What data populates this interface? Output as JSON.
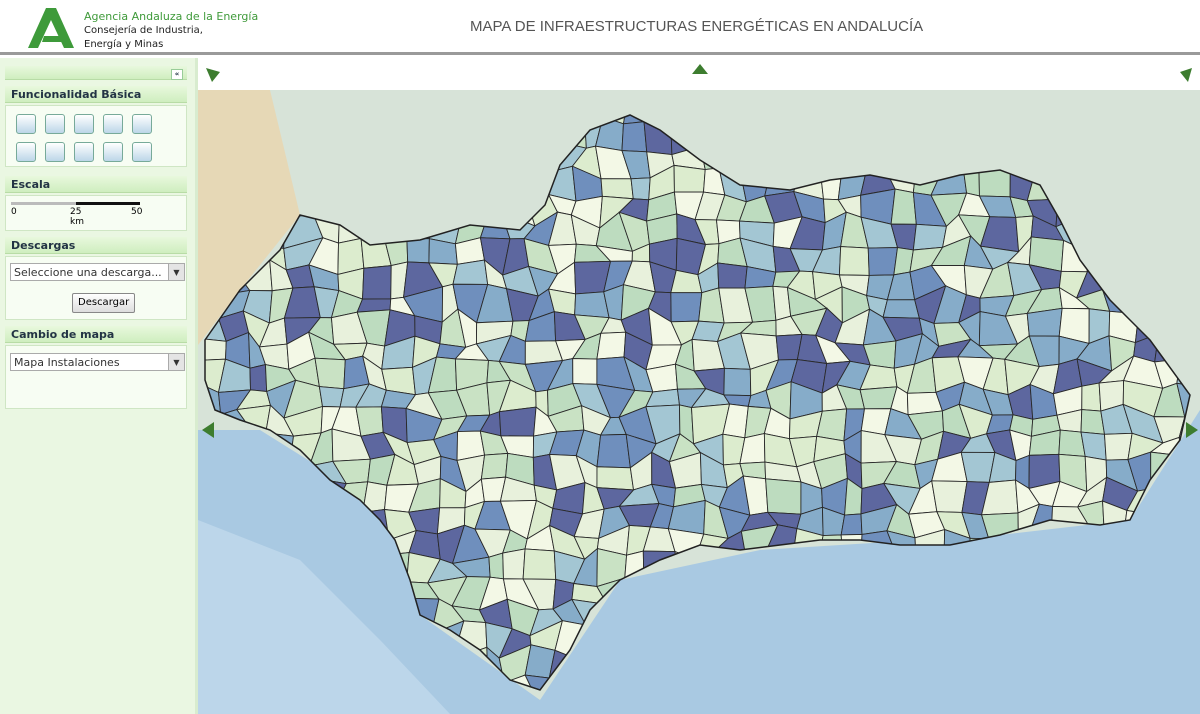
{
  "header": {
    "agency": "Agencia Andaluza de la Energía",
    "ministry_line1": "Consejería de Industria,",
    "ministry_line2": "Energía y Minas",
    "title": "MAPA DE INFRAESTRUCTURAS ENERGÉTICAS EN ANDALUCÍA"
  },
  "panels": [
    {
      "title": "Funcionalidad Básica"
    },
    {
      "title": "Escala",
      "scale": {
        "ticks": [
          0,
          25,
          50
        ],
        "unit": "km"
      }
    },
    {
      "title": "Descargas",
      "select": "Seleccione una descarga...",
      "button": "Descargar"
    },
    {
      "title": "Cambio de mapa",
      "select": "Mapa Instalaciones"
    }
  ]
}
